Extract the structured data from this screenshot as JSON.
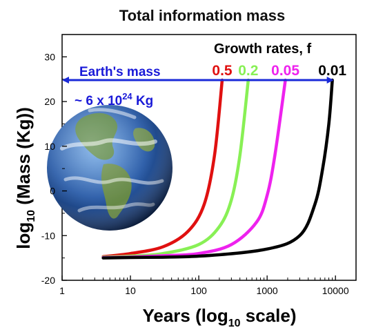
{
  "chart_data": {
    "type": "line",
    "title": "Total information mass",
    "xlabel": {
      "main": "Years (log",
      "sub": "10",
      "tail": " scale)"
    },
    "ylabel": {
      "pre": "log",
      "sub": "10",
      "tail": " (Mass (Kg))"
    },
    "x_scale": "log",
    "xlim": [
      1,
      20000
    ],
    "ylim": [
      -20,
      35
    ],
    "xticks": [
      1,
      10,
      100,
      1000,
      10000
    ],
    "xtick_labels": [
      "1",
      "10",
      "100",
      "1000",
      "10000"
    ],
    "yticks": [
      -20,
      -10,
      0,
      10,
      20,
      30
    ],
    "ytick_labels": [
      "-20",
      "-10",
      "0",
      "10",
      "20",
      "30"
    ],
    "legend_title": "Growth rates, f",
    "series": [
      {
        "name": "0.5",
        "color": "#e01010",
        "x": [
          4,
          10,
          30,
          70,
          120,
          170,
          220
        ],
        "y": [
          -14.7,
          -14.0,
          -12.5,
          -9.0,
          -3.0,
          8.0,
          24.8
        ]
      },
      {
        "name": "0.2",
        "color": "#88f055",
        "x": [
          4,
          10,
          30,
          100,
          200,
          300,
          400,
          530
        ],
        "y": [
          -14.8,
          -14.6,
          -14.0,
          -12.0,
          -8.0,
          -2.0,
          8.0,
          24.8
        ]
      },
      {
        "name": "0.05",
        "color": "#ee22ee",
        "x": [
          4,
          10,
          30,
          100,
          300,
          700,
          1000,
          1300,
          1850
        ],
        "y": [
          -14.9,
          -14.8,
          -14.5,
          -14.0,
          -12.0,
          -7.0,
          -1.0,
          8.0,
          24.8
        ]
      },
      {
        "name": "0.01",
        "color": "#000000",
        "x": [
          4,
          10,
          100,
          1000,
          3000,
          5000,
          6500,
          8000,
          9000
        ],
        "y": [
          -15.0,
          -14.9,
          -14.6,
          -13.0,
          -10.0,
          -3.0,
          5.0,
          15.0,
          24.8
        ]
      }
    ],
    "annotations": {
      "earth_label": "Earth's mass",
      "mass_pre": "~ 6 x 10",
      "mass_exp": "24",
      "mass_unit": " Kg",
      "arrow_level": 24.8,
      "arrow_x": [
        1,
        9000
      ],
      "arrow_color": "#1a2ad8"
    },
    "grid": false
  },
  "image": {
    "subject": "planet-earth",
    "icon": "earth-globe-icon"
  }
}
